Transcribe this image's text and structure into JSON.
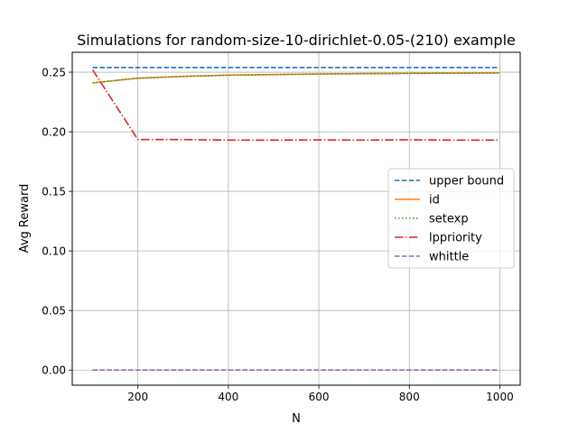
{
  "chart_data": {
    "type": "line",
    "title": "Simulations for random-size-10-dirichlet-0.05-(210) example",
    "xlabel": "N",
    "ylabel": "Avg Reward",
    "xlim": [
      55,
      1045
    ],
    "ylim": [
      -0.0127,
      0.2667
    ],
    "x_ticks": [
      200,
      400,
      600,
      800,
      1000
    ],
    "y_ticks": [
      0.0,
      0.05,
      0.1,
      0.15,
      0.2,
      0.25
    ],
    "y_tick_labels": [
      "0.00",
      "0.05",
      "0.10",
      "0.15",
      "0.20",
      "0.25"
    ],
    "grid": true,
    "legend_position": "center-right",
    "x": [
      100,
      200,
      300,
      400,
      500,
      600,
      700,
      800,
      900,
      1000
    ],
    "series": [
      {
        "name": "upper bound",
        "color": "#1f77b4",
        "dash": "dashed",
        "values": [
          0.254,
          0.254,
          0.254,
          0.254,
          0.254,
          0.254,
          0.254,
          0.254,
          0.254,
          0.254
        ]
      },
      {
        "name": "id",
        "color": "#ff7f0e",
        "dash": "solid",
        "values": [
          0.241,
          0.245,
          0.2465,
          0.2475,
          0.248,
          0.2485,
          0.2488,
          0.249,
          0.2492,
          0.2494
        ]
      },
      {
        "name": "setexp",
        "color": "#2ca02c",
        "dash": "dotted",
        "values": [
          0.241,
          0.245,
          0.2465,
          0.2475,
          0.248,
          0.2485,
          0.2488,
          0.249,
          0.2492,
          0.2494
        ]
      },
      {
        "name": "lppriority",
        "color": "#d62728",
        "dash": "dashdot",
        "values": [
          0.252,
          0.1935,
          0.1935,
          0.193,
          0.193,
          0.1932,
          0.193,
          0.1933,
          0.193,
          0.193
        ]
      },
      {
        "name": "whittle",
        "color": "#9467bd",
        "dash": "dashed",
        "values": [
          0.0,
          0.0,
          0.0,
          0.0,
          0.0,
          0.0,
          0.0,
          0.0,
          0.0,
          0.0
        ]
      }
    ]
  }
}
